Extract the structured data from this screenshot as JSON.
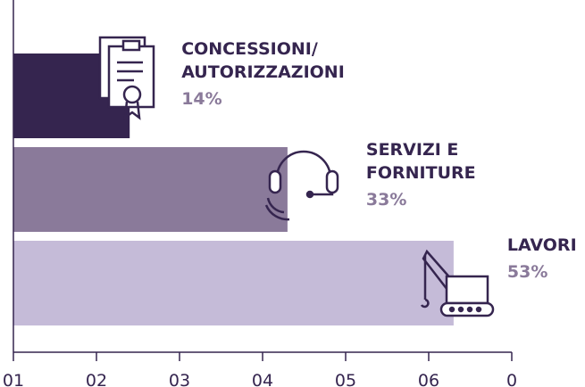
{
  "chart_data": {
    "type": "hbar",
    "categories": [
      "CONCESSIONI/\nAUTORIZZAZIONI",
      "SERVIZI E\nFORNITURE",
      "LAVORI"
    ],
    "values": [
      14,
      33,
      53
    ],
    "value_labels": [
      "14%",
      "33%",
      "53%"
    ],
    "colors": [
      "#35254f",
      "#8a7a9a",
      "#c5bbd8"
    ],
    "xlim": [
      0,
      60
    ],
    "xticks": [
      {
        "value": 0,
        "label": "01"
      },
      {
        "value": 10,
        "label": "02"
      },
      {
        "value": 20,
        "label": "03"
      },
      {
        "value": 30,
        "label": "04"
      },
      {
        "value": 40,
        "label": "05"
      },
      {
        "value": 50,
        "label": "06"
      },
      {
        "value": 60,
        "label": "0"
      }
    ]
  }
}
